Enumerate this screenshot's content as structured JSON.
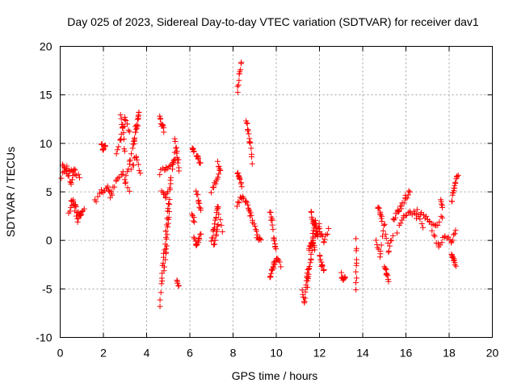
{
  "chart_data": {
    "type": "scatter",
    "title": "Day 025 of 2023, Sidereal Day-to-day VTEC variation (SDTVAR) for receiver dav1",
    "xlabel": "GPS time / hours",
    "ylabel": "SDTVAR / TECUs",
    "xlim": [
      0,
      20
    ],
    "ylim": [
      -10,
      20
    ],
    "xticks": [
      "0",
      "2",
      "4",
      "6",
      "8",
      "10",
      "12",
      "14",
      "16",
      "18",
      "20"
    ],
    "yticks": [
      "-10",
      "-5",
      "0",
      "5",
      "10",
      "15",
      "20"
    ],
    "grid": true,
    "marker": "plus",
    "color": "#ff0000",
    "tracks": [
      {
        "x": [
          0.05,
          0.3,
          0.6,
          0.9
        ],
        "y": [
          6.5,
          7.5,
          7.0,
          6.5
        ]
      },
      {
        "x": [
          0.1,
          0.3,
          0.5,
          0.7
        ],
        "y": [
          8.0,
          7.0,
          6.0,
          7.5
        ]
      },
      {
        "x": [
          0.4,
          0.6,
          0.8,
          1.0
        ],
        "y": [
          3.0,
          4.0,
          2.0,
          3.0
        ]
      },
      {
        "x": [
          0.5,
          0.7,
          0.9,
          1.1
        ],
        "y": [
          4.0,
          3.5,
          2.5,
          3.0
        ]
      },
      {
        "x": [
          1.6,
          1.9,
          2.2,
          2.4
        ],
        "y": [
          4.0,
          5.0,
          5.5,
          4.5
        ]
      },
      {
        "x": [
          1.9,
          2.0,
          2.1
        ],
        "y": [
          10.0,
          9.5,
          9.8
        ]
      },
      {
        "x": [
          2.3,
          2.6,
          2.9,
          3.2
        ],
        "y": [
          4.5,
          6.0,
          7.0,
          5.0
        ]
      },
      {
        "x": [
          2.6,
          2.8,
          3.0,
          3.2
        ],
        "y": [
          9.0,
          10.5,
          12.5,
          11.0
        ]
      },
      {
        "x": [
          2.8,
          2.9,
          3.0
        ],
        "y": [
          12.8,
          11.5,
          9.0
        ]
      },
      {
        "x": [
          3.0,
          3.2,
          3.4,
          3.6
        ],
        "y": [
          6.0,
          8.0,
          10.0,
          12.0
        ]
      },
      {
        "x": [
          3.4,
          3.5,
          3.6,
          3.65
        ],
        "y": [
          10.0,
          11.5,
          12.5,
          13.3
        ]
      },
      {
        "x": [
          3.3,
          3.5,
          3.7
        ],
        "y": [
          7.5,
          8.5,
          7.0
        ]
      },
      {
        "x": [
          4.6,
          4.7,
          4.8
        ],
        "y": [
          12.8,
          12.0,
          11.3
        ]
      },
      {
        "x": [
          4.6,
          4.9,
          5.2,
          5.5
        ],
        "y": [
          7.0,
          7.5,
          8.0,
          8.5
        ]
      },
      {
        "x": [
          4.7,
          4.9,
          5.1,
          5.3
        ],
        "y": [
          5.0,
          4.5,
          6.0,
          9.0
        ]
      },
      {
        "x": [
          5.3,
          5.4,
          5.5
        ],
        "y": [
          10.5,
          9.0,
          7.0
        ]
      },
      {
        "x": [
          4.6,
          4.7,
          4.8,
          4.9,
          5.0
        ],
        "y": [
          -6.8,
          -4.0,
          -1.5,
          1.0,
          4.0
        ]
      },
      {
        "x": [
          4.8,
          4.9,
          5.0,
          5.1
        ],
        "y": [
          -3.0,
          -1.0,
          2.0,
          5.0
        ]
      },
      {
        "x": [
          5.4,
          5.5
        ],
        "y": [
          -4.3,
          -4.8
        ]
      },
      {
        "x": [
          6.1,
          6.2
        ],
        "y": [
          9.6,
          9.3
        ]
      },
      {
        "x": [
          6.3,
          6.4,
          6.5
        ],
        "y": [
          8.8,
          8.3,
          7.8
        ]
      },
      {
        "x": [
          6.1,
          6.2
        ],
        "y": [
          2.5,
          2.0
        ]
      },
      {
        "x": [
          6.2,
          6.3,
          6.4,
          6.5
        ],
        "y": [
          0.5,
          -0.5,
          0.0,
          0.5
        ]
      },
      {
        "x": [
          6.3,
          6.4,
          6.5
        ],
        "y": [
          5.0,
          4.0,
          3.0
        ]
      },
      {
        "x": [
          7.0,
          7.2,
          7.4
        ],
        "y": [
          5.0,
          6.0,
          7.0
        ]
      },
      {
        "x": [
          7.3,
          7.4
        ],
        "y": [
          8.0,
          7.2
        ]
      },
      {
        "x": [
          7.0,
          7.1,
          7.2,
          7.3,
          7.5
        ],
        "y": [
          0.0,
          1.0,
          2.5,
          3.5,
          1.0
        ]
      },
      {
        "x": [
          7.1,
          7.2,
          7.3
        ],
        "y": [
          -0.5,
          0.5,
          1.5
        ]
      },
      {
        "x": [
          8.2,
          8.3,
          8.4
        ],
        "y": [
          15.5,
          17.0,
          18.5
        ]
      },
      {
        "x": [
          8.2,
          8.3,
          8.4
        ],
        "y": [
          7.0,
          6.5,
          5.5
        ]
      },
      {
        "x": [
          8.2,
          8.4,
          8.6,
          8.8
        ],
        "y": [
          3.5,
          4.5,
          4.0,
          3.0
        ]
      },
      {
        "x": [
          8.6,
          8.7,
          8.8,
          8.9
        ],
        "y": [
          12.2,
          11.5,
          10.0,
          8.0
        ]
      },
      {
        "x": [
          8.7,
          8.9,
          9.1
        ],
        "y": [
          3.5,
          2.0,
          1.0
        ]
      },
      {
        "x": [
          9.1,
          9.2,
          9.3
        ],
        "y": [
          0.5,
          0.0,
          0.3
        ]
      },
      {
        "x": [
          9.7,
          9.8,
          9.9,
          10.0
        ],
        "y": [
          3.0,
          2.0,
          0.0,
          -1.0
        ]
      },
      {
        "x": [
          9.7,
          9.8,
          9.9,
          10.0,
          10.2
        ],
        "y": [
          -4.0,
          -3.0,
          -2.5,
          -2.0,
          -2.5
        ]
      },
      {
        "x": [
          11.2,
          11.3,
          11.4,
          11.5
        ],
        "y": [
          -5.0,
          -6.5,
          -4.0,
          -3.0
        ]
      },
      {
        "x": [
          11.4,
          11.5,
          11.6,
          11.7,
          11.8
        ],
        "y": [
          -5.0,
          -3.5,
          -2.0,
          0.0,
          -1.0
        ]
      },
      {
        "x": [
          11.5,
          11.6,
          11.7,
          11.8
        ],
        "y": [
          -1.0,
          -0.5,
          0.5,
          2.0
        ]
      },
      {
        "x": [
          11.6,
          11.7,
          11.8,
          11.9,
          12.0
        ],
        "y": [
          3.0,
          2.0,
          1.5,
          0.5,
          1.5
        ]
      },
      {
        "x": [
          11.8,
          12.0,
          12.2,
          12.4
        ],
        "y": [
          0.5,
          1.0,
          0.0,
          1.0
        ]
      },
      {
        "x": [
          12.0,
          12.1,
          12.2
        ],
        "y": [
          -1.5,
          -2.5,
          -3.0
        ]
      },
      {
        "x": [
          13.0,
          13.1,
          13.2
        ],
        "y": [
          -3.5,
          -4.0,
          -3.8
        ]
      },
      {
        "x": [
          13.7,
          13.7,
          13.7
        ],
        "y": [
          0.0,
          -2.5,
          -5.0
        ]
      },
      {
        "x": [
          14.6,
          14.8,
          15.0,
          15.2,
          15.4
        ],
        "y": [
          0.0,
          -1.5,
          1.5,
          -1.0,
          0.5
        ]
      },
      {
        "x": [
          14.7,
          14.8,
          14.9
        ],
        "y": [
          3.5,
          3.0,
          2.0
        ]
      },
      {
        "x": [
          15.0,
          15.1,
          15.2
        ],
        "y": [
          -2.5,
          -3.5,
          -4.0
        ]
      },
      {
        "x": [
          15.4,
          15.6,
          15.8,
          16.0,
          16.2
        ],
        "y": [
          2.0,
          3.0,
          3.5,
          4.5,
          5.0
        ]
      },
      {
        "x": [
          15.6,
          15.9,
          16.2,
          16.5,
          16.8
        ],
        "y": [
          1.0,
          2.5,
          3.0,
          2.5,
          1.5
        ]
      },
      {
        "x": [
          16.5,
          16.8,
          17.1,
          17.4,
          17.7
        ],
        "y": [
          3.0,
          2.5,
          2.0,
          1.5,
          2.5
        ]
      },
      {
        "x": [
          17.2,
          17.5,
          17.8,
          18.1,
          18.3
        ],
        "y": [
          1.0,
          -0.5,
          0.5,
          0.0,
          1.0
        ]
      },
      {
        "x": [
          17.6,
          17.7
        ],
        "y": [
          4.0,
          3.5
        ]
      },
      {
        "x": [
          18.1,
          18.2,
          18.3
        ],
        "y": [
          -1.5,
          -2.0,
          -2.5
        ]
      },
      {
        "x": [
          18.1,
          18.2,
          18.3,
          18.4
        ],
        "y": [
          4.0,
          5.0,
          6.0,
          6.8
        ]
      }
    ]
  }
}
